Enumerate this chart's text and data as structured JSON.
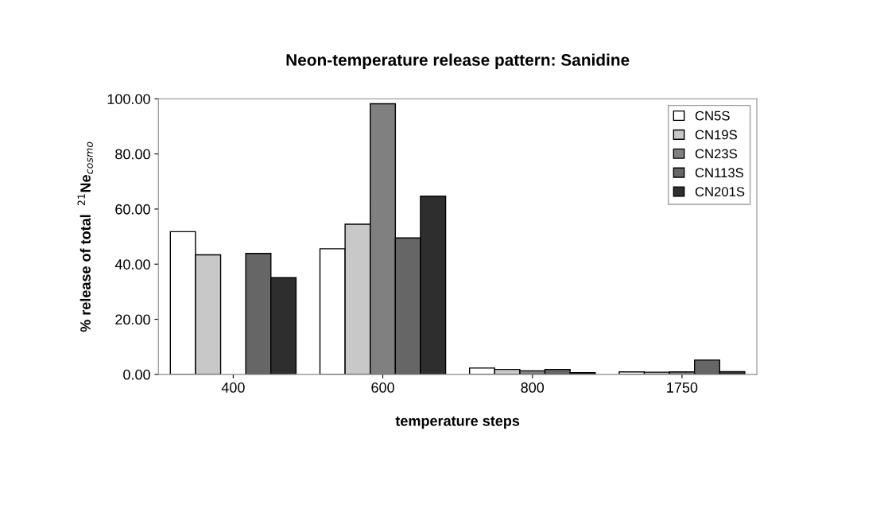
{
  "chart_data": {
    "type": "bar",
    "title": "Neon-temperature release pattern: Sanidine",
    "xlabel": "temperature steps",
    "ylabel": "% release of total  $^{21}$Ne$_{cosmo}$",
    "categories": [
      "400",
      "600",
      "800",
      "1750"
    ],
    "series": [
      {
        "name": "CN5S",
        "color": "#ffffff",
        "values": [
          51.8,
          45.6,
          2.3,
          0.9
        ]
      },
      {
        "name": "CN19S",
        "color": "#c8c8c8",
        "values": [
          43.4,
          54.5,
          1.8,
          0.8
        ]
      },
      {
        "name": "CN23S",
        "color": "#808080",
        "values": [
          null,
          98.2,
          1.3,
          0.9
        ]
      },
      {
        "name": "CN113S",
        "color": "#666666",
        "values": [
          43.9,
          49.5,
          1.8,
          5.2
        ]
      },
      {
        "name": "CN201S",
        "color": "#2e2e2e",
        "values": [
          35.1,
          64.7,
          0.6,
          1.0
        ]
      }
    ],
    "ylim": [
      0,
      100
    ],
    "yticks": [
      {
        "value": 0,
        "label": "0.00"
      },
      {
        "value": 20,
        "label": "20.00"
      },
      {
        "value": 40,
        "label": "40.00"
      },
      {
        "value": 60,
        "label": "60.00"
      },
      {
        "value": 80,
        "label": "80.00"
      },
      {
        "value": 100,
        "label": "100.00"
      }
    ],
    "legend": "top right",
    "grid": false
  }
}
